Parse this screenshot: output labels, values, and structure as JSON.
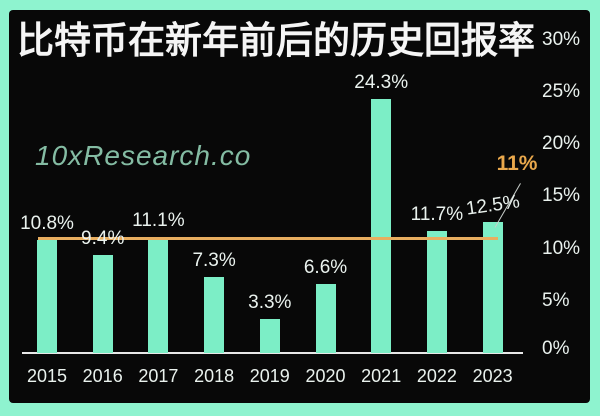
{
  "header": {
    "title": "比特币在新年前后的历史回报率"
  },
  "watermark": "10xResearch.co",
  "colors": {
    "frame": "#8EF3CF",
    "background": "#080808",
    "bar": "#7CEEC6",
    "title_text": "#F5F5F5",
    "label_text": "#EAF2EE",
    "axis_line": "#E8E8E8",
    "average_line": "#E8AE60",
    "annotation_text": "#E9A84C",
    "watermark_text": "#9ADCBF"
  },
  "chart_data": {
    "type": "bar",
    "title": "比特币在新年前后的历史回报率",
    "categories": [
      "2015",
      "2016",
      "2017",
      "2018",
      "2019",
      "2020",
      "2021",
      "2022",
      "2023"
    ],
    "values": [
      10.8,
      9.4,
      11.1,
      7.3,
      3.3,
      6.6,
      24.3,
      11.7,
      12.5
    ],
    "value_labels": [
      "10.8%",
      "9.4%",
      "11.1%",
      "7.3%",
      "3.3%",
      "6.6%",
      "24.3%",
      "11.7%",
      "12.5%"
    ],
    "unit": "%",
    "y_axis": {
      "position": "right",
      "ticks": [
        "30%",
        "25%",
        "20%",
        "15%",
        "10%",
        "5%",
        "0%"
      ],
      "tick_values": [
        30,
        25,
        20,
        15,
        10,
        5,
        0
      ],
      "range": [
        0,
        30
      ]
    },
    "average_line": {
      "value": 11,
      "label": "11%"
    },
    "grid": false,
    "legend": false
  }
}
